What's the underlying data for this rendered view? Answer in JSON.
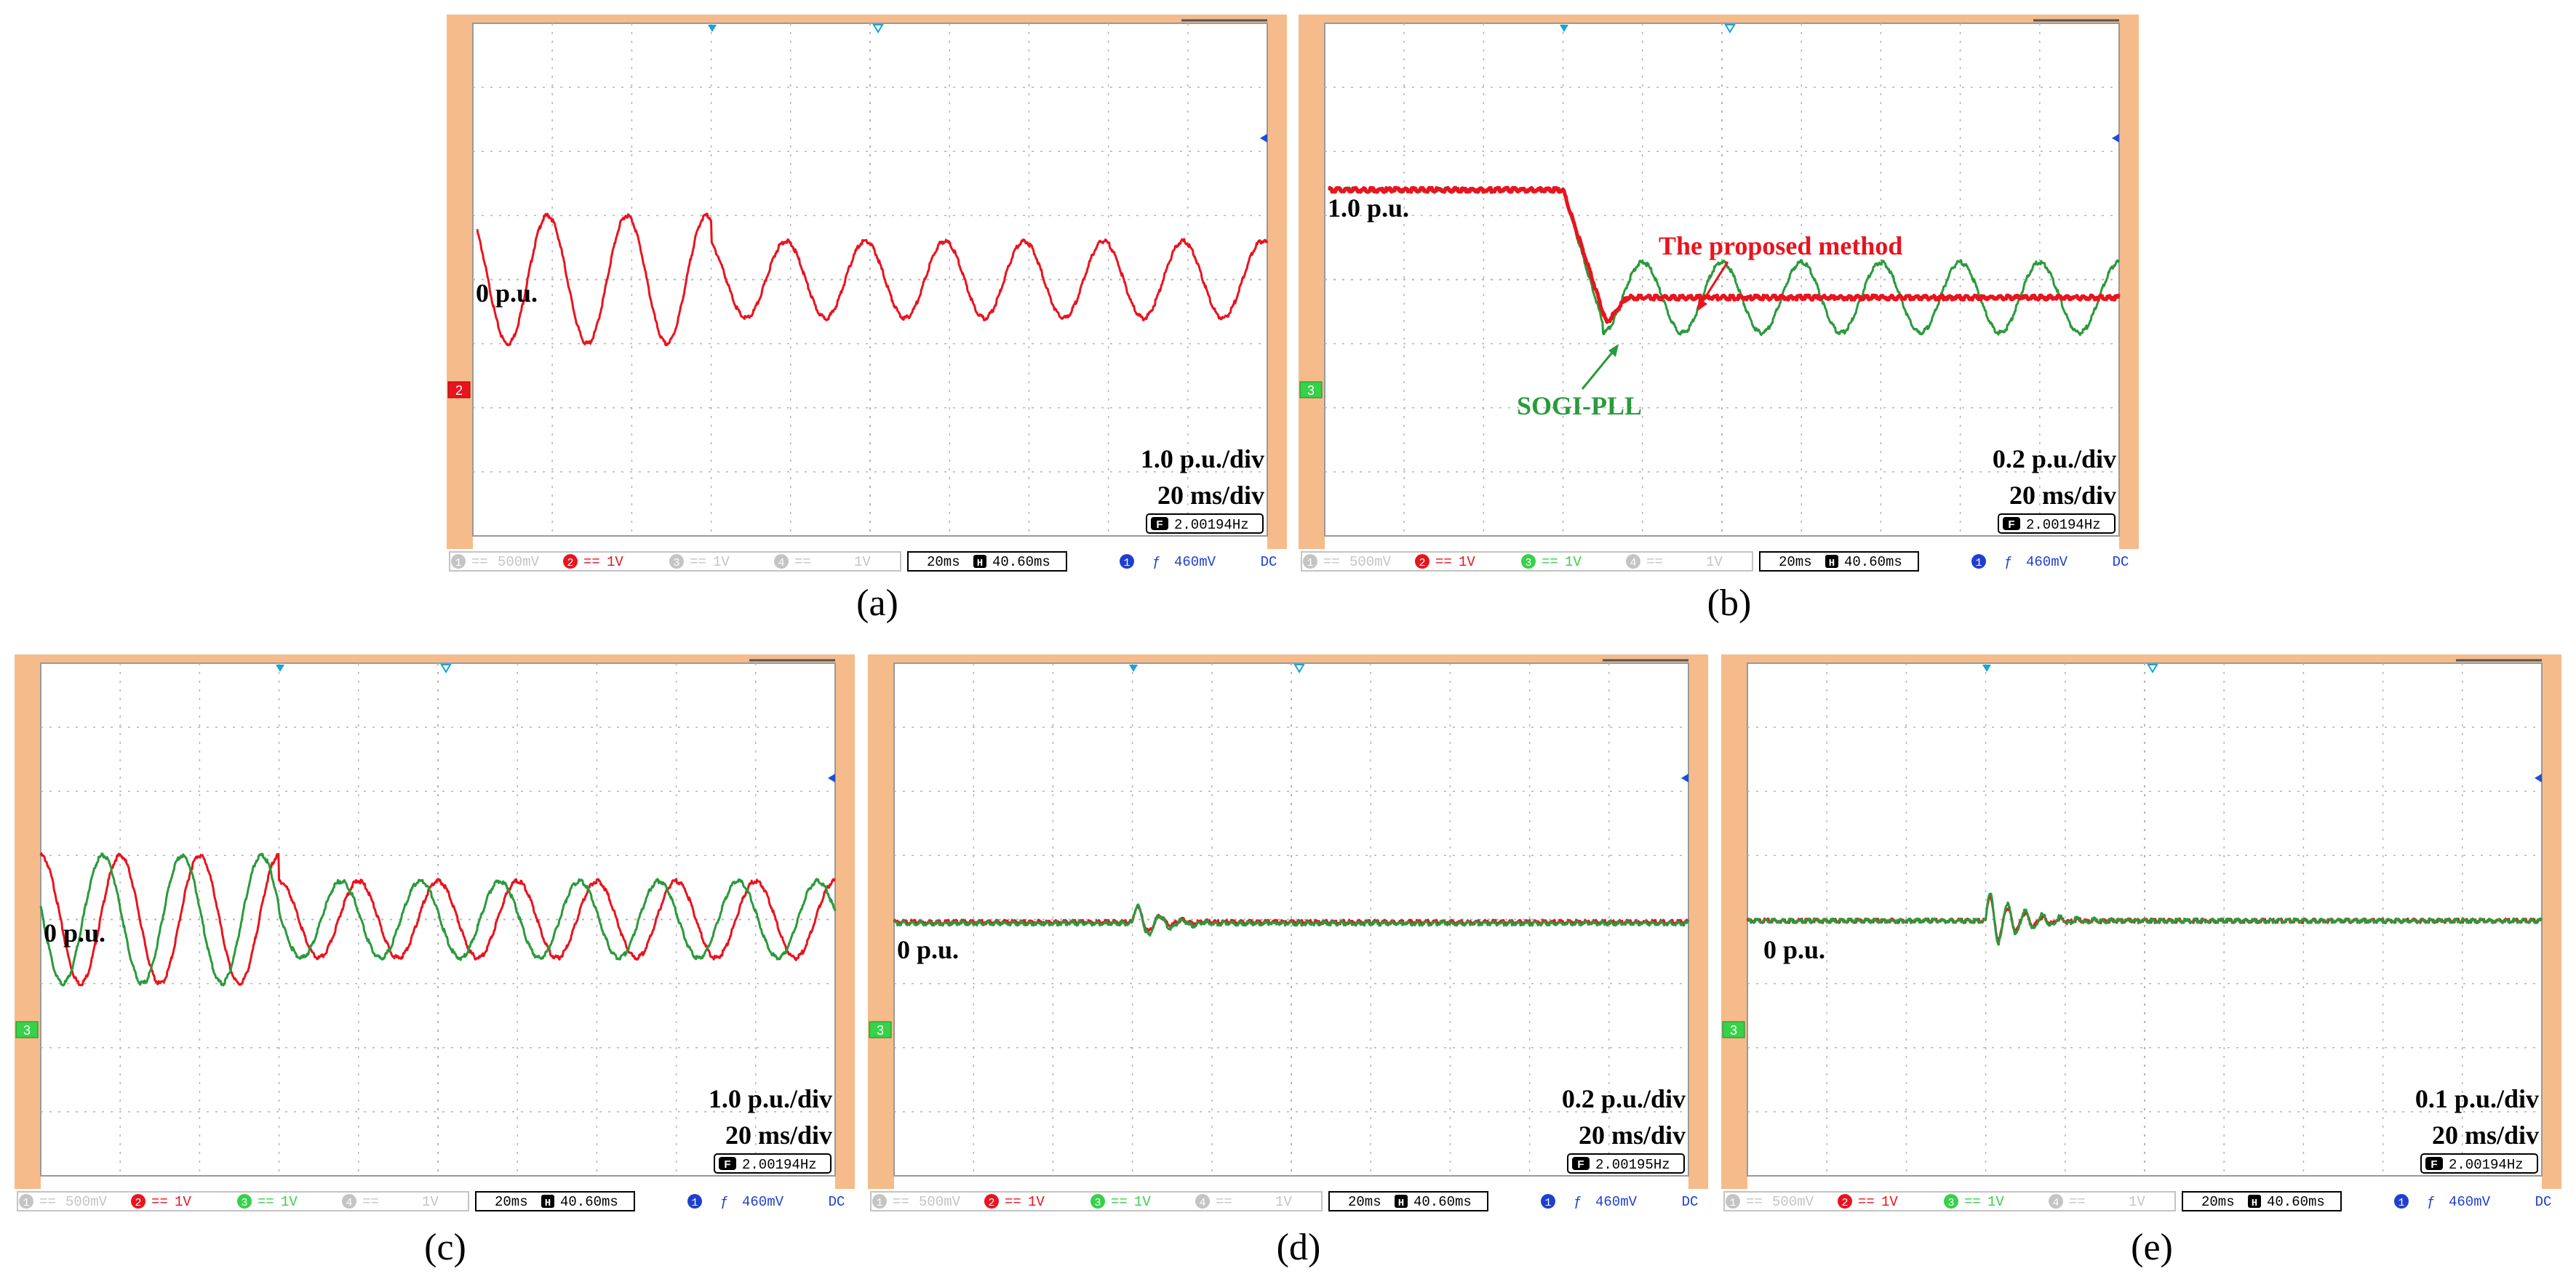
{
  "colors": {
    "ch2_red": "#e8141e",
    "ch3_green": "#2a9a3c",
    "orange_bezel": "#f6bb8a",
    "grid": "#b4b4b4",
    "cursor_marker": "#1aa3d9",
    "trigger_marker": "#1f4fd0",
    "ch1_grey": "#c4c4c4",
    "ch3_label_green": "#37d14a",
    "status_blue": "#1f3fd0"
  },
  "scope_status": {
    "ch1": "500mV",
    "ch2": "1V",
    "ch3": "1V",
    "ch4": "1V",
    "timebase": "20ms",
    "h_position": "40.60ms",
    "trigger_level": "460mV",
    "coupling": "DC",
    "h_icon": "H",
    "f_icon": "F",
    "trigger_slope_symbol": "ƒ",
    "ch1_num": "1",
    "ch2_num": "2",
    "ch3_num": "3",
    "ch4_num": "4",
    "trig_num": "1"
  },
  "panels": [
    {
      "caption": "(a)",
      "zero_label": "0 p.u.",
      "level_label": "",
      "scale_label": "1.0 p.u./div",
      "time_label": "20 ms/div",
      "frequency_readout": "2.00194Hz",
      "channel_marker": "2",
      "annotations": []
    },
    {
      "caption": "(b)",
      "zero_label": "",
      "level_label": "1.0 p.u.",
      "scale_label": "0.2 p.u./div",
      "time_label": "20 ms/div",
      "frequency_readout": "2.00194Hz",
      "channel_marker": "3",
      "annotations": [
        {
          "text": "The proposed method",
          "color": "red"
        },
        {
          "text": "SOGI-PLL",
          "color": "green"
        }
      ]
    },
    {
      "caption": "(c)",
      "zero_label": "0 p.u.",
      "level_label": "",
      "scale_label": "1.0 p.u./div",
      "time_label": "20 ms/div",
      "frequency_readout": "2.00194Hz",
      "channel_marker": "3",
      "annotations": []
    },
    {
      "caption": "(d)",
      "zero_label": "0 p.u.",
      "level_label": "",
      "scale_label": "0.2 p.u./div",
      "time_label": "20 ms/div",
      "frequency_readout": "2.00195Hz",
      "channel_marker": "3",
      "annotations": []
    },
    {
      "caption": "(e)",
      "zero_label": "0 p.u.",
      "level_label": "",
      "scale_label": "0.1 p.u./div",
      "time_label": "20 ms/div",
      "frequency_readout": "2.00194Hz",
      "channel_marker": "3",
      "annotations": []
    }
  ],
  "chart_data": [
    {
      "type": "line",
      "grid": true,
      "x_divisions": 10,
      "y_divisions": 8,
      "x_unit": "div",
      "y_unit": "div",
      "series": [
        {
          "color_key": "ch2_red",
          "kind": "sine",
          "before": {
            "amplitude": 1.0,
            "offset": 0,
            "period": 1.0
          },
          "after": {
            "amplitude": 0.6,
            "offset": 0,
            "period": 1.0
          },
          "event_x": 3.0,
          "x_start": 0.05,
          "x_end": 10,
          "phase": 0.06
        }
      ]
    },
    {
      "type": "line",
      "grid": true,
      "x_divisions": 10,
      "y_divisions": 8,
      "x_unit": "div",
      "y_unit": "div",
      "series": [
        {
          "color_key": "ch3_green",
          "kind": "step_oscillate",
          "level_before": 1.4,
          "event_x": 3.0,
          "level_after": -0.28,
          "osc_amplitude": 0.55,
          "osc_period": 1.0,
          "x_start": 0.05,
          "x_end": 10
        },
        {
          "color_key": "ch2_red",
          "kind": "step_settle",
          "level_before": 1.4,
          "event_x": 3.0,
          "level_after": -0.28,
          "x_start": 0.05,
          "x_end": 10
        }
      ]
    },
    {
      "type": "line",
      "grid": true,
      "x_divisions": 10,
      "y_divisions": 8,
      "x_unit": "div",
      "y_unit": "div",
      "series": [
        {
          "color_key": "ch2_red",
          "kind": "sine",
          "before": {
            "amplitude": 1.0,
            "offset": 0,
            "period": 1.0
          },
          "after": {
            "amplitude": 0.6,
            "offset": 0,
            "period": 1.0
          },
          "event_x": 3.0,
          "x_start": 0,
          "x_end": 10,
          "phase": 0.0
        },
        {
          "color_key": "ch3_green",
          "kind": "sine",
          "before": {
            "amplitude": 1.0,
            "offset": 0,
            "period": 1.0
          },
          "after": {
            "amplitude": 0.6,
            "offset": 0,
            "period": 1.0
          },
          "event_x": 3.0,
          "x_start": 0,
          "x_end": 10,
          "phase": 0.22
        }
      ]
    },
    {
      "type": "line",
      "grid": true,
      "x_divisions": 10,
      "y_divisions": 8,
      "x_unit": "div",
      "y_unit": "div",
      "series": [
        {
          "color_key": "ch2_red",
          "kind": "transient",
          "level": -0.04,
          "event_x": 3.0,
          "transient_amplitude": 0.3,
          "decay": 0.28,
          "period": 0.28,
          "x_start": 0,
          "x_end": 10
        },
        {
          "color_key": "ch3_green",
          "kind": "transient",
          "level": -0.06,
          "event_x": 3.0,
          "transient_amplitude": 0.34,
          "decay": 0.32,
          "period": 0.28,
          "x_start": 0,
          "x_end": 10
        }
      ]
    },
    {
      "type": "line",
      "grid": true,
      "x_divisions": 10,
      "y_divisions": 8,
      "x_unit": "div",
      "y_unit": "div",
      "series": [
        {
          "color_key": "ch2_red",
          "kind": "transient",
          "level": -0.02,
          "event_x": 3.0,
          "transient_amplitude": 0.45,
          "decay": 0.35,
          "period": 0.22,
          "x_start": 0,
          "x_end": 10
        },
        {
          "color_key": "ch3_green",
          "kind": "transient",
          "level": -0.02,
          "event_x": 3.0,
          "transient_amplitude": 0.5,
          "decay": 0.42,
          "period": 0.22,
          "x_start": 0,
          "x_end": 10
        }
      ]
    }
  ]
}
